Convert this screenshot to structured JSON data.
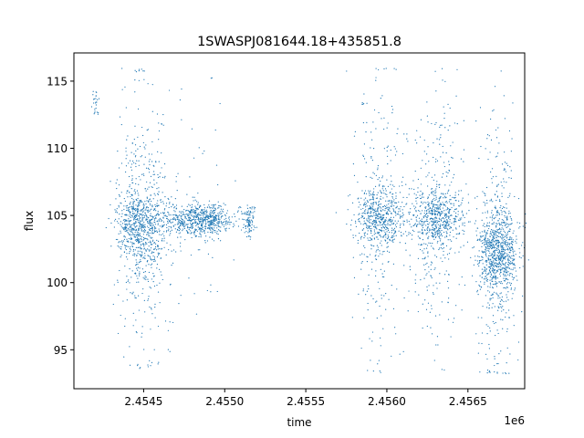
{
  "chart_data": {
    "type": "scatter",
    "title": "1SWASPJ081644.18+435851.8",
    "xlabel": "time",
    "ylabel": "flux",
    "x_offset_label": "1e6",
    "x_tick_values": [
      2.4545,
      2.455,
      2.4555,
      2.456,
      2.4565
    ],
    "x_tick_labels": [
      "2.4545",
      "2.4550",
      "2.4555",
      "2.4560",
      "2.4565"
    ],
    "y_tick_values": [
      95,
      100,
      105,
      110,
      115
    ],
    "y_tick_labels": [
      "95",
      "100",
      "105",
      "110",
      "115"
    ],
    "xlim": [
      2.45407,
      2.45685
    ],
    "ylim": [
      92.1,
      117.1
    ],
    "grid": false,
    "point_color": "#1f77b4",
    "segments": [
      {
        "x_center": 2.4542,
        "x_width": 1e-05,
        "y_center": 113.4,
        "y_spread": 0.6,
        "y_min": 112.5,
        "y_max": 115.3,
        "outlier_fraction": 0.0,
        "count": 25
      },
      {
        "x_center": 2.45444,
        "x_width": 6e-05,
        "y_center": 104.5,
        "y_spread": 1.2,
        "y_min": 93.6,
        "y_max": 116.0,
        "outlier_fraction": 0.35,
        "count": 420
      },
      {
        "x_center": 2.45453,
        "x_width": 8e-05,
        "y_center": 104.0,
        "y_spread": 1.6,
        "y_min": 93.8,
        "y_max": 116.0,
        "outlier_fraction": 0.4,
        "count": 650
      },
      {
        "x_center": 2.45485,
        "x_width": 0.0001,
        "y_center": 104.7,
        "y_spread": 0.6,
        "y_min": 93.5,
        "y_max": 115.3,
        "outlier_fraction": 0.06,
        "count": 700
      },
      {
        "x_center": 2.45515,
        "x_width": 2e-05,
        "y_center": 104.6,
        "y_spread": 0.5,
        "y_min": 103.0,
        "y_max": 106.2,
        "outlier_fraction": 0.0,
        "count": 100
      },
      {
        "x_center": 2.45596,
        "x_width": 8e-05,
        "y_center": 104.8,
        "y_spread": 1.1,
        "y_min": 93.2,
        "y_max": 116.0,
        "outlier_fraction": 0.35,
        "count": 750
      },
      {
        "x_center": 2.45631,
        "x_width": 8e-05,
        "y_center": 104.8,
        "y_spread": 1.1,
        "y_min": 93.2,
        "y_max": 116.0,
        "outlier_fraction": 0.35,
        "count": 800
      },
      {
        "x_center": 2.45665,
        "x_width": 5e-05,
        "y_center": 102.2,
        "y_spread": 1.6,
        "y_min": 93.2,
        "y_max": 116.0,
        "outlier_fraction": 0.3,
        "count": 550
      },
      {
        "x_center": 2.45672,
        "x_width": 5e-05,
        "y_center": 102.3,
        "y_spread": 1.4,
        "y_min": 93.2,
        "y_max": 116.0,
        "outlier_fraction": 0.3,
        "count": 500
      }
    ]
  }
}
